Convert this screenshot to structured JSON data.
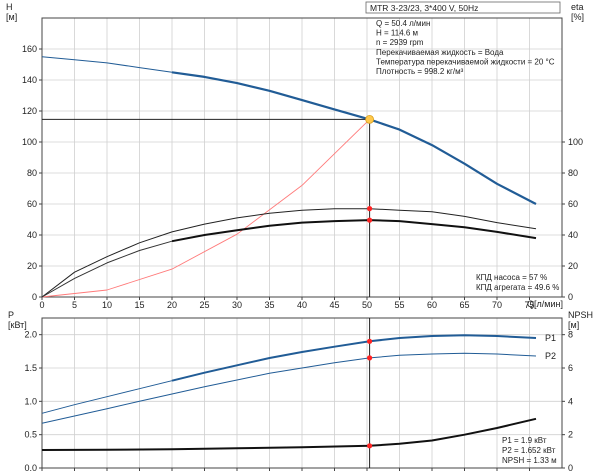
{
  "header": {
    "title": "MTR 3-23/23, 3*400 V, 50Hz"
  },
  "colors": {
    "pump_curve": "#215c96",
    "system_curve": "#ff7a7a",
    "efficiency": "#000000",
    "duty_point": "#ffc84a",
    "marker": "#ff2222"
  },
  "operating_point": {
    "lines": [
      "Q = 50.4 л/мин",
      "H = 114.6 м",
      "n = 2939 rpm",
      "Перекачиваемая жидкость = Вода",
      "Температура перекачиваемой жидкости = 20 °C",
      "Плотность = 998.2 кг/м³"
    ]
  },
  "efficiency_text": {
    "lines": [
      "КПД насоса = 57 %",
      "КПД агрегата = 49.6 %"
    ]
  },
  "power_text": {
    "lines": [
      "P1 = 1.9 кВт",
      "P2 = 1.652 кВт",
      "NPSH = 1.33 м"
    ]
  },
  "chart_data": [
    {
      "type": "line",
      "xlabel": "Q [л/мин]",
      "ylabel": "H [м]",
      "y2label": "eta [%]",
      "xlim": [
        0,
        80
      ],
      "ylim": [
        0,
        180
      ],
      "y2lim": [
        0,
        180
      ],
      "xticks": [
        0,
        5,
        10,
        15,
        20,
        25,
        30,
        35,
        40,
        45,
        50,
        55,
        60,
        65,
        70,
        75
      ],
      "yticks": [
        0,
        20,
        40,
        60,
        80,
        100,
        120,
        140,
        160
      ],
      "y2ticks": [
        0,
        20,
        40,
        60,
        80,
        100
      ],
      "grid": true,
      "series": [
        {
          "name": "H",
          "axis": "left",
          "style": "thick",
          "points": [
            [
              20,
              145
            ],
            [
              25,
              142
            ],
            [
              30,
              138
            ],
            [
              35,
              133
            ],
            [
              40,
              127
            ],
            [
              45,
              121
            ],
            [
              50.4,
              114.6
            ],
            [
              55,
              108
            ],
            [
              60,
              98
            ],
            [
              65,
              86
            ],
            [
              70,
              73
            ],
            [
              76,
              60
            ]
          ]
        },
        {
          "name": "H-low-flow",
          "axis": "left",
          "style": "thin",
          "points": [
            [
              0,
              155
            ],
            [
              5,
              153
            ],
            [
              10,
              151
            ],
            [
              15,
              148
            ],
            [
              20,
              145
            ]
          ]
        },
        {
          "name": "system",
          "axis": "left",
          "style": "system",
          "points": [
            [
              0,
              0
            ],
            [
              10,
              4.5
            ],
            [
              20,
              18
            ],
            [
              30,
              40.5
            ],
            [
              40,
              72
            ],
            [
              50.4,
              114.6
            ]
          ]
        },
        {
          "name": "КПД насоса",
          "axis": "right",
          "style": "thin-dark",
          "points": [
            [
              0,
              0
            ],
            [
              5,
              16
            ],
            [
              10,
              26
            ],
            [
              15,
              35
            ],
            [
              20,
              42
            ],
            [
              25,
              47
            ],
            [
              30,
              51
            ],
            [
              35,
              54
            ],
            [
              40,
              56
            ],
            [
              45,
              57
            ],
            [
              50.4,
              57
            ],
            [
              55,
              56
            ],
            [
              60,
              55
            ],
            [
              65,
              52
            ],
            [
              70,
              48
            ],
            [
              76,
              44
            ]
          ]
        },
        {
          "name": "КПД агрегата",
          "axis": "right",
          "style": "thin-mid",
          "points": [
            [
              0,
              0
            ],
            [
              5,
              12
            ],
            [
              10,
              22
            ],
            [
              15,
              30
            ],
            [
              20,
              36
            ]
          ]
        },
        {
          "name": "КПД агрегата-main",
          "axis": "right",
          "style": "thick-dark",
          "points": [
            [
              20,
              36
            ],
            [
              25,
              40
            ],
            [
              30,
              43
            ],
            [
              35,
              46
            ],
            [
              40,
              48
            ],
            [
              45,
              49
            ],
            [
              50.4,
              49.6
            ],
            [
              55,
              49
            ],
            [
              60,
              47
            ],
            [
              65,
              45
            ],
            [
              70,
              42
            ],
            [
              76,
              38
            ]
          ]
        }
      ],
      "duty_point": {
        "x": 50.4,
        "y": 114.6
      },
      "markers": [
        {
          "x": 50.4,
          "y": 57,
          "axis": "right"
        },
        {
          "x": 50.4,
          "y": 49.6,
          "axis": "right"
        }
      ]
    },
    {
      "type": "line",
      "ylabel": "P [кВт]",
      "y2label": "NPSH [м]",
      "xlim": [
        0,
        80
      ],
      "ylim": [
        0,
        2.25
      ],
      "y2lim": [
        0,
        9
      ],
      "yticks": [
        0,
        0.5,
        1.0,
        1.5,
        2.0
      ],
      "ytick_labels": [
        "0.0",
        "0.5",
        "1.0",
        "1.5",
        "2.0"
      ],
      "y2ticks": [
        0,
        2,
        4,
        6,
        8
      ],
      "grid": true,
      "series": [
        {
          "name": "P1",
          "axis": "left",
          "style": "thick-blue",
          "points": [
            [
              20,
              1.31
            ],
            [
              25,
              1.43
            ],
            [
              30,
              1.54
            ],
            [
              35,
              1.65
            ],
            [
              40,
              1.74
            ],
            [
              45,
              1.82
            ],
            [
              50.4,
              1.9
            ],
            [
              55,
              1.95
            ],
            [
              60,
              1.98
            ],
            [
              65,
              1.99
            ],
            [
              70,
              1.98
            ],
            [
              76,
              1.95
            ]
          ]
        },
        {
          "name": "P1-low-flow",
          "axis": "left",
          "style": "thin-blue",
          "points": [
            [
              0,
              0.82
            ],
            [
              5,
              0.95
            ],
            [
              10,
              1.07
            ],
            [
              15,
              1.19
            ],
            [
              20,
              1.31
            ]
          ]
        },
        {
          "name": "P2",
          "axis": "left",
          "style": "thin-blue",
          "points": [
            [
              0,
              0.67
            ],
            [
              5,
              0.78
            ],
            [
              10,
              0.89
            ],
            [
              15,
              1.0
            ],
            [
              20,
              1.11
            ],
            [
              25,
              1.22
            ],
            [
              30,
              1.32
            ],
            [
              35,
              1.42
            ],
            [
              40,
              1.5
            ],
            [
              45,
              1.58
            ],
            [
              50.4,
              1.652
            ],
            [
              55,
              1.69
            ],
            [
              60,
              1.71
            ],
            [
              65,
              1.72
            ],
            [
              70,
              1.71
            ],
            [
              76,
              1.68
            ]
          ]
        },
        {
          "name": "NPSH",
          "axis": "right",
          "style": "thick-dark",
          "points": [
            [
              0,
              1.08
            ],
            [
              10,
              1.1
            ],
            [
              20,
              1.12
            ],
            [
              30,
              1.18
            ],
            [
              40,
              1.25
            ],
            [
              50.4,
              1.33
            ],
            [
              55,
              1.45
            ],
            [
              60,
              1.65
            ],
            [
              65,
              2.0
            ],
            [
              70,
              2.4
            ],
            [
              76,
              2.95
            ]
          ]
        }
      ],
      "markers": [
        {
          "x": 50.4,
          "y": 1.9,
          "axis": "left"
        },
        {
          "x": 50.4,
          "y": 1.652,
          "axis": "left"
        },
        {
          "x": 50.4,
          "y": 1.33,
          "axis": "right"
        }
      ],
      "series_labels": [
        {
          "text": "P1",
          "x": 76,
          "y": 1.95
        },
        {
          "text": "P2",
          "x": 76,
          "y": 1.68
        }
      ]
    }
  ]
}
